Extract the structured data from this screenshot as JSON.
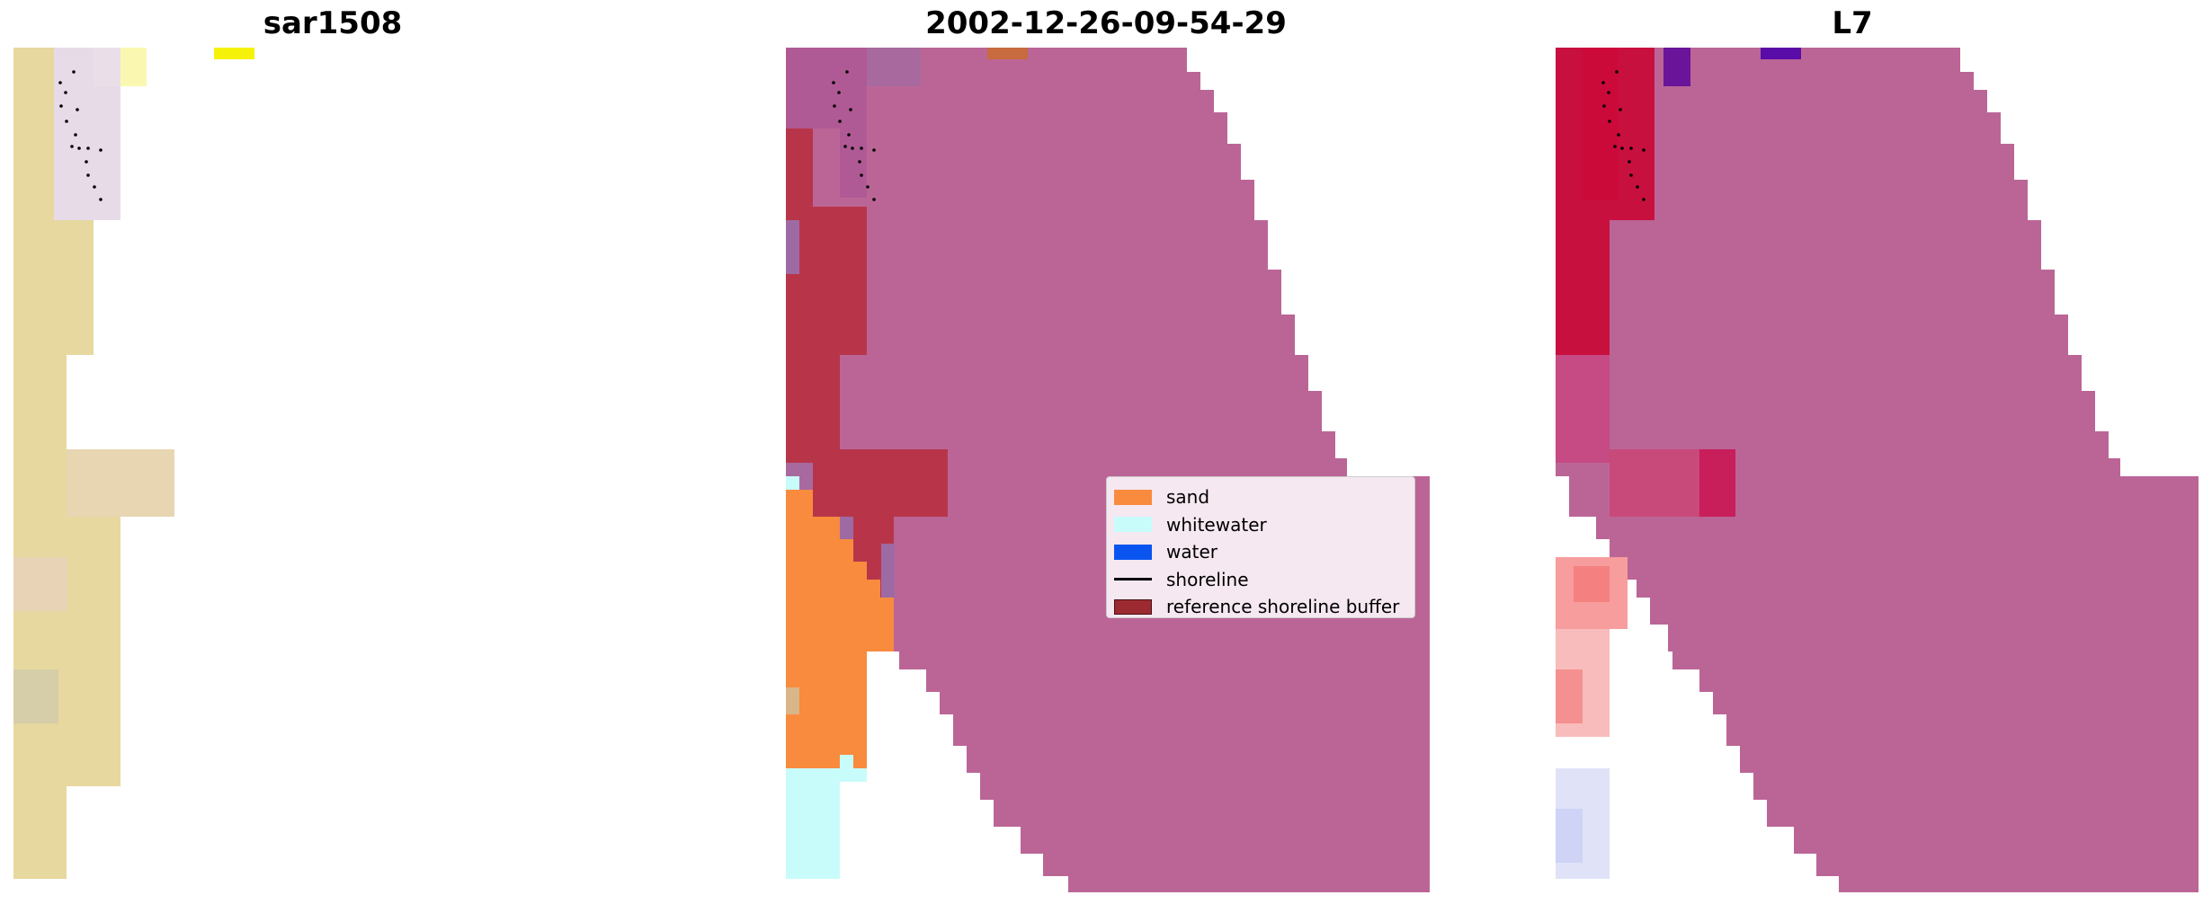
{
  "panels": [
    {
      "title": "sar1508"
    },
    {
      "title": "2002-12-26-09-54-29"
    },
    {
      "title": "L7"
    }
  ],
  "legend": {
    "items": [
      {
        "label": "sand",
        "color": "#f88b3e",
        "type": "patch"
      },
      {
        "label": "whitewater",
        "color": "#c8fcfb",
        "type": "patch"
      },
      {
        "label": "water",
        "color": "#0a55f0",
        "type": "patch"
      },
      {
        "label": "shoreline",
        "color": "#000000",
        "type": "line"
      },
      {
        "label": "reference shoreline buffer",
        "color": "#9b2a31",
        "type": "patch"
      }
    ]
  },
  "colors": {
    "land_mask": "#bb6597",
    "buffer": "#b83549",
    "sand": "#f88b3e",
    "whitewater": "#c8fcfb",
    "rgb_sand": "#e7d8a0",
    "index_high": "#c8103e",
    "index_low": "#e0e2f8"
  }
}
